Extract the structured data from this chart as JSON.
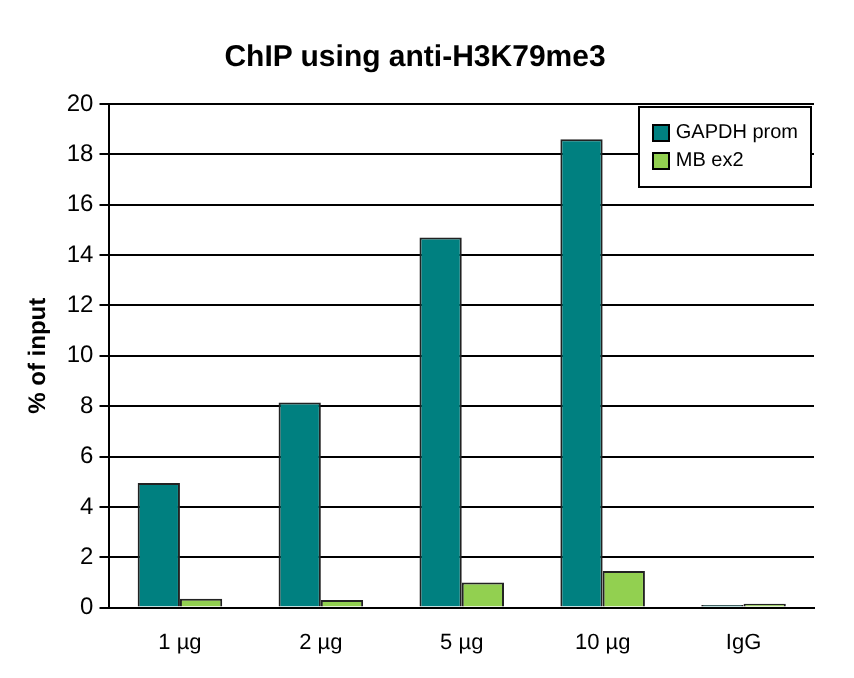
{
  "chart_data": {
    "type": "bar",
    "title": "ChIP using anti-H3K79me3",
    "ylabel": "% of input",
    "categories": [
      "1 µg",
      "2 µg",
      "5 µg",
      "10 µg",
      "IgG"
    ],
    "series": [
      {
        "name": "GAPDH prom",
        "color": "#008080",
        "values": [
          4.95,
          8.15,
          14.7,
          18.6,
          0.1
        ]
      },
      {
        "name": "MB ex2",
        "color": "#92d050",
        "values": [
          0.35,
          0.3,
          1.0,
          1.45,
          0.15
        ]
      }
    ],
    "ylim": [
      0,
      20
    ],
    "yticks": [
      0,
      2,
      4,
      6,
      8,
      10,
      12,
      14,
      16,
      18,
      20
    ],
    "grid": "y",
    "legend": "top right"
  }
}
